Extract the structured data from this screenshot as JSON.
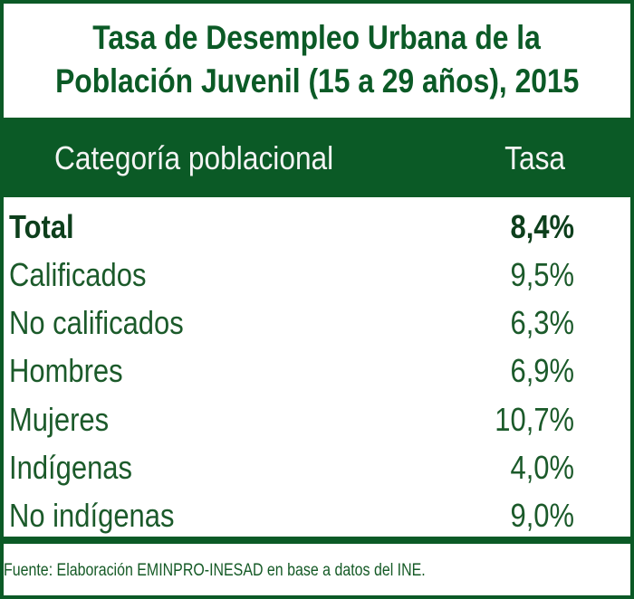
{
  "title": {
    "line1": "Tasa de Desempleo Urbana de la",
    "line2": "Población Juvenil (15 a 29 años), 2015"
  },
  "table": {
    "headers": [
      "Categoría poblacional",
      "Tasa"
    ],
    "rows": [
      {
        "category": "Total",
        "rate": "8,4%"
      },
      {
        "category": "Calificados",
        "rate": "9,5%"
      },
      {
        "category": "No calificados",
        "rate": "6,3%"
      },
      {
        "category": "Hombres",
        "rate": "6,9%"
      },
      {
        "category": "Mujeres",
        "rate": "10,7%"
      },
      {
        "category": "Indígenas",
        "rate": "4,0%"
      },
      {
        "category": "No indígenas",
        "rate": "9,0%"
      }
    ]
  },
  "footer": "Fuente: Elaboración EMINPRO-INESAD en base a datos del INE.",
  "colors": {
    "brand_green": "#0b5a26",
    "text_green": "#1b5a2a"
  }
}
